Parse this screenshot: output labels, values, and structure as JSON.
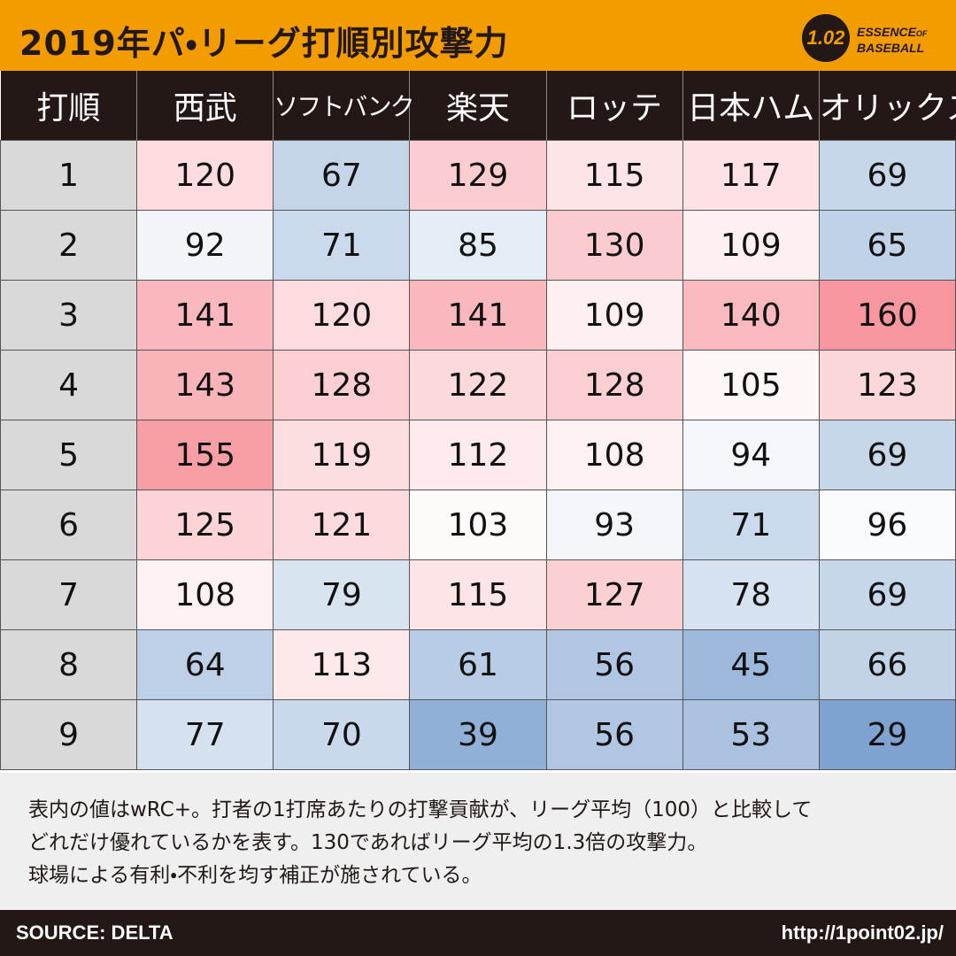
{
  "header": {
    "title": "2019年パ・リーグ打順別攻撃力"
  },
  "logo": {
    "number": "1.02",
    "word": "ESSENCE",
    "small": "OF",
    "line2": "BASEBALL"
  },
  "table": {
    "headers": [
      "打順",
      "西武",
      "ソフトバンク",
      "楽天",
      "ロッテ",
      "日本ハム",
      "オリックス"
    ],
    "rows": [
      [
        "1",
        120,
        67,
        129,
        115,
        117,
        69
      ],
      [
        "2",
        92,
        71,
        85,
        130,
        109,
        65
      ],
      [
        "3",
        141,
        120,
        141,
        109,
        140,
        160
      ],
      [
        "4",
        143,
        128,
        122,
        128,
        105,
        123
      ],
      [
        "5",
        155,
        119,
        112,
        108,
        94,
        69
      ],
      [
        "6",
        125,
        121,
        103,
        93,
        71,
        96
      ],
      [
        "7",
        108,
        79,
        115,
        127,
        78,
        69
      ],
      [
        "8",
        64,
        113,
        61,
        56,
        45,
        66
      ],
      [
        "9",
        77,
        70,
        39,
        56,
        53,
        29
      ]
    ]
  },
  "notes": [
    "表内の値はwRC+。打者の1打席あたりの打撃貢献が、リーグ平均（100）と比較して",
    "どれだけ優れているかを表す。130であればリーグ平均の1.3倍の攻撃力。",
    "球場による有利・不利を均す補正が施されている。"
  ],
  "footer": {
    "source": "SOURCE: DELTA",
    "url": "http://1point02.jp/"
  }
}
